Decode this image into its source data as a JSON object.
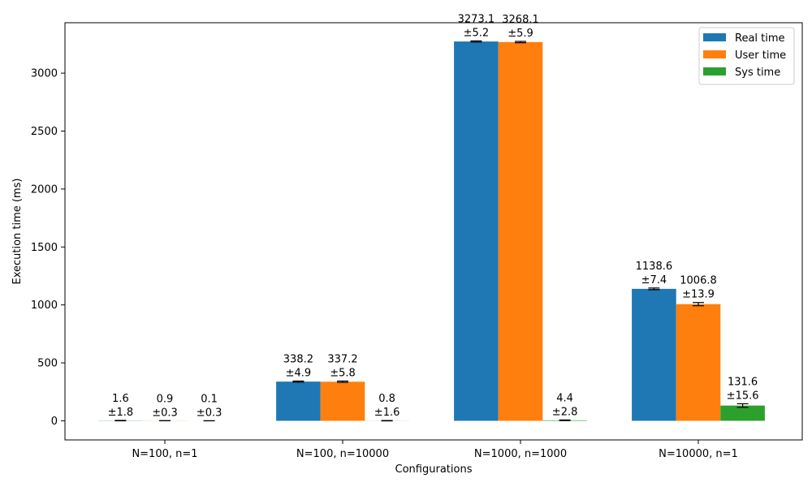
{
  "chart_data": {
    "type": "bar",
    "title": "",
    "xlabel": "Configurations",
    "ylabel": "Execution time (ms)",
    "categories": [
      "N=100, n=1",
      "N=100, n=10000",
      "N=1000, n=1000",
      "N=10000, n=1"
    ],
    "ylim": [
      -165,
      3435
    ],
    "yticks": [
      0,
      500,
      1000,
      1500,
      2000,
      2500,
      3000
    ],
    "grid": false,
    "legend_position": "top-right",
    "series": [
      {
        "name": "Real time",
        "color": "#1f77b4",
        "values": [
          1.6,
          338.2,
          3273.1,
          1138.6
        ],
        "errors": [
          1.8,
          4.9,
          5.2,
          7.4
        ],
        "value_labels": [
          "1.6",
          "338.2",
          "3273.1",
          "1138.6"
        ],
        "error_labels": [
          "±1.8",
          "±4.9",
          "±5.2",
          "±7.4"
        ]
      },
      {
        "name": "User time",
        "color": "#ff7f0e",
        "values": [
          0.9,
          337.2,
          3268.1,
          1006.8
        ],
        "errors": [
          0.3,
          5.8,
          5.9,
          13.9
        ],
        "value_labels": [
          "0.9",
          "337.2",
          "3268.1",
          "1006.8"
        ],
        "error_labels": [
          "±0.3",
          "±5.8",
          "±5.9",
          "±13.9"
        ]
      },
      {
        "name": "Sys time",
        "color": "#2ca02c",
        "values": [
          0.1,
          0.8,
          4.4,
          131.6
        ],
        "errors": [
          0.3,
          1.6,
          2.8,
          15.6
        ],
        "value_labels": [
          "0.1",
          "0.8",
          "4.4",
          "131.6"
        ],
        "error_labels": [
          "±0.3",
          "±1.6",
          "±2.8",
          "±15.6"
        ]
      }
    ]
  }
}
